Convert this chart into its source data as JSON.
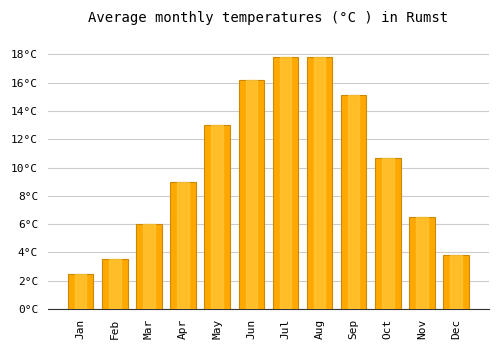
{
  "title": "Average monthly temperatures (°C ) in Rumst",
  "months": [
    "Jan",
    "Feb",
    "Mar",
    "Apr",
    "May",
    "Jun",
    "Jul",
    "Aug",
    "Sep",
    "Oct",
    "Nov",
    "Dec"
  ],
  "temps": [
    2.5,
    3.5,
    6.0,
    9.0,
    13.0,
    16.2,
    17.8,
    17.8,
    15.1,
    10.7,
    6.5,
    3.8
  ],
  "bar_color": "#FFA800",
  "bar_edge_color": "#CC8800",
  "background_color": "#FFFFFF",
  "grid_color": "#CCCCCC",
  "ylim": [
    0,
    19.5
  ],
  "yticks": [
    0,
    2,
    4,
    6,
    8,
    10,
    12,
    14,
    16,
    18
  ],
  "title_fontsize": 10,
  "tick_fontsize": 8,
  "font_family": "monospace"
}
